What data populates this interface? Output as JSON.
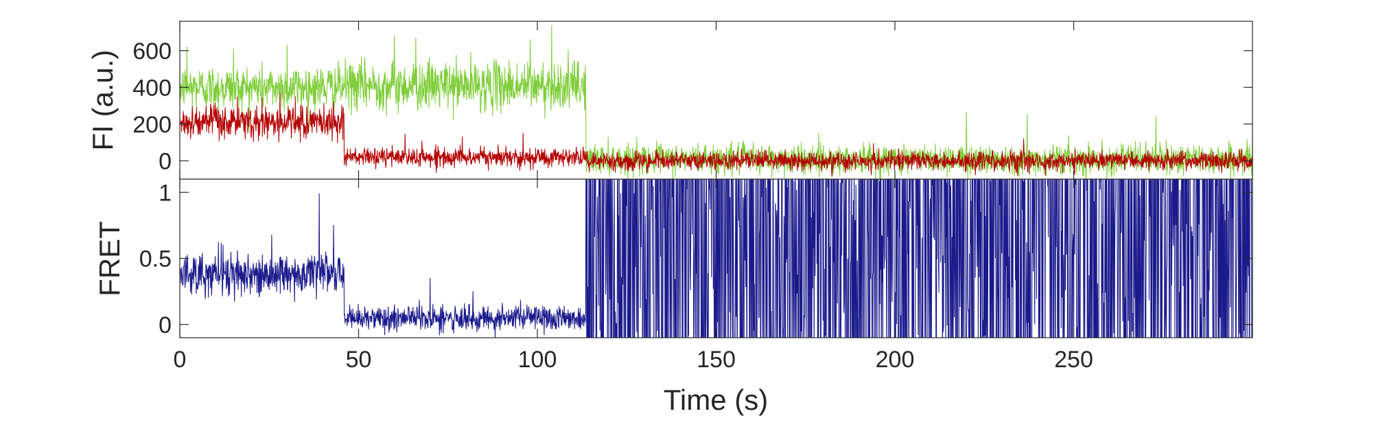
{
  "chart_data": [
    {
      "id": "fluorescence",
      "type": "line",
      "title": "",
      "xlabel": "",
      "ylabel": "FI (a.u.)",
      "xlim": [
        0,
        300
      ],
      "ylim": [
        -100,
        760
      ],
      "yticks": [
        0,
        200,
        400,
        600
      ],
      "xticks": [
        0,
        50,
        100,
        150,
        200,
        250
      ],
      "show_xtick_labels": false,
      "grid": false,
      "legend": "none",
      "sampling_interval_s": 0.1,
      "series": [
        {
          "role": "donor",
          "color": "#7fce3a",
          "segments": [
            {
              "t_start": 0,
              "t_end": 46,
              "mean": 400,
              "noise": 60
            },
            {
              "t_start": 46,
              "t_end": 113.5,
              "mean": 410,
              "noise": 65
            },
            {
              "t_start": 113.5,
              "t_end": 300,
              "mean": 10,
              "noise": 40
            }
          ],
          "spikes": [
            {
              "t": 2,
              "value": 620
            },
            {
              "t": 15,
              "value": 610
            },
            {
              "t": 30,
              "value": 630
            },
            {
              "t": 60,
              "value": 680
            },
            {
              "t": 66,
              "value": 670
            },
            {
              "t": 98,
              "value": 660
            },
            {
              "t": 104,
              "value": 735
            },
            {
              "t": 220,
              "value": 265
            },
            {
              "t": 237,
              "value": 255
            },
            {
              "t": 273,
              "value": 240
            }
          ]
        },
        {
          "role": "acceptor",
          "color": "#b40000",
          "segments": [
            {
              "t_start": 0,
              "t_end": 46,
              "mean": 210,
              "noise": 45
            },
            {
              "t_start": 46,
              "t_end": 113.5,
              "mean": 20,
              "noise": 25
            },
            {
              "t_start": 113.5,
              "t_end": 300,
              "mean": 0,
              "noise": 25
            }
          ],
          "spikes": [
            {
              "t": 23,
              "value": 340
            },
            {
              "t": 28,
              "value": 370
            },
            {
              "t": 43,
              "value": 320
            },
            {
              "t": 63,
              "value": 145
            },
            {
              "t": 79,
              "value": 130
            },
            {
              "t": 96,
              "value": 150
            },
            {
              "t": 236,
              "value": 120
            }
          ]
        }
      ]
    },
    {
      "id": "fret",
      "type": "line",
      "title": "",
      "xlabel": "Time (s)",
      "ylabel": "FRET",
      "xlim": [
        0,
        300
      ],
      "ylim": [
        -0.1,
        1.1
      ],
      "yticks": [
        0,
        0.5,
        1
      ],
      "ytick_labels": [
        "0",
        "0.5",
        "1"
      ],
      "xticks": [
        0,
        50,
        100,
        150,
        200,
        250
      ],
      "xtick_labels": [
        "0",
        "50",
        "100",
        "150",
        "200",
        "250"
      ],
      "grid": false,
      "legend": "none",
      "sampling_interval_s": 0.1,
      "series": [
        {
          "role": "fret",
          "color": "#1a1a8c",
          "segments": [
            {
              "t_start": 0,
              "t_end": 46,
              "mean": 0.38,
              "noise": 0.08,
              "mode": "gaussian"
            },
            {
              "t_start": 46,
              "t_end": 113.5,
              "mean": 0.05,
              "noise": 0.05,
              "mode": "gaussian"
            },
            {
              "t_start": 113.5,
              "t_end": 300,
              "mean": 0.55,
              "noise": 0.6,
              "mode": "random-telegraph"
            }
          ],
          "spikes": [
            {
              "t": 39,
              "value": 0.99
            },
            {
              "t": 43,
              "value": 0.75
            },
            {
              "t": 70,
              "value": 0.35
            },
            {
              "t": 82,
              "value": 0.25
            }
          ]
        }
      ]
    }
  ]
}
